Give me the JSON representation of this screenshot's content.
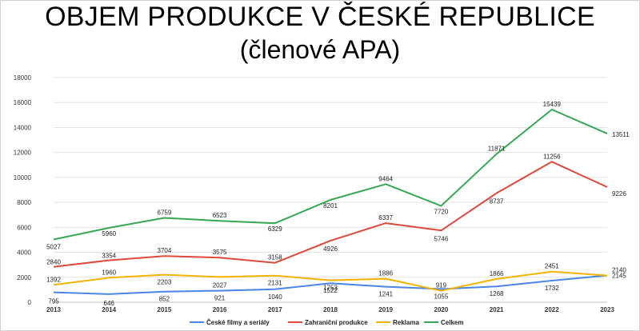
{
  "chart_data": {
    "type": "line",
    "title": "OBJEM PRODUKCE V ČESKÉ REPUBLICE",
    "subtitle": "(členové APA)",
    "xlabel": "",
    "ylabel": "",
    "x": [
      "2013",
      "2014",
      "2015",
      "2016",
      "2017",
      "2018",
      "2019",
      "2020",
      "2021",
      "2022",
      "2023"
    ],
    "ylim": [
      0,
      18000
    ],
    "yticks": [
      0,
      2000,
      4000,
      6000,
      8000,
      10000,
      12000,
      14000,
      16000,
      18000
    ],
    "grid": "horizontal",
    "legend_position": "bottom",
    "series": [
      {
        "name": "České filmy a seriály",
        "color": "#4a86e8",
        "values": [
          795,
          646,
          852,
          921,
          1040,
          1522,
          1241,
          1055,
          1268,
          1732,
          2145
        ]
      },
      {
        "name": "Zahraniční produkce",
        "color": "#e0483b",
        "values": [
          2840,
          3354,
          3704,
          3575,
          3158,
          4926,
          6337,
          5746,
          8737,
          11256,
          9226
        ]
      },
      {
        "name": "Reklama",
        "color": "#f4b400",
        "values": [
          1392,
          1960,
          2203,
          2027,
          2131,
          1753,
          1886,
          919,
          1866,
          2451,
          2140
        ]
      },
      {
        "name": "Celkem",
        "color": "#34a853",
        "values": [
          5027,
          5960,
          6759,
          6523,
          6329,
          8201,
          9464,
          7720,
          11871,
          15439,
          13511
        ]
      }
    ]
  }
}
